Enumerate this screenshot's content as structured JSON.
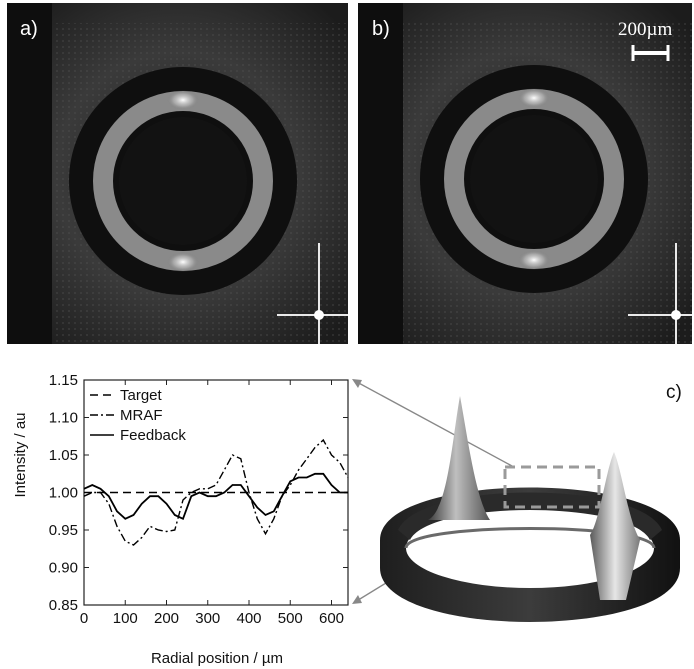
{
  "panels": {
    "a_label": "a)",
    "b_label": "b)",
    "c_label": "c)",
    "scalebar": "200µm"
  },
  "chart_data": {
    "type": "line",
    "xlabel": "Radial position / µm",
    "ylabel": "Intensity / au",
    "xlim": [
      0,
      640
    ],
    "ylim": [
      0.85,
      1.15
    ],
    "x_ticks": [
      0,
      100,
      200,
      300,
      400,
      500,
      600
    ],
    "y_ticks": [
      0.85,
      0.9,
      0.95,
      1.0,
      1.05,
      1.1,
      1.15
    ],
    "y_tick_labels": [
      "0.85",
      "0.90",
      "0.95",
      "1.00",
      "1.05",
      "1.10",
      "1.15"
    ],
    "legend_position": "top-left",
    "series": [
      {
        "name": "Target",
        "style": "dashed",
        "x": [
          0,
          640
        ],
        "y": [
          1.0,
          1.0
        ]
      },
      {
        "name": "MRAF",
        "style": "dashdot",
        "x": [
          0,
          20,
          40,
          60,
          80,
          100,
          120,
          140,
          160,
          180,
          200,
          220,
          240,
          260,
          280,
          300,
          320,
          340,
          360,
          380,
          400,
          420,
          440,
          460,
          480,
          500,
          520,
          540,
          560,
          580,
          600,
          620,
          640
        ],
        "y": [
          0.995,
          1.0,
          1.0,
          0.985,
          0.955,
          0.935,
          0.93,
          0.94,
          0.955,
          0.95,
          0.948,
          0.95,
          0.99,
          1.0,
          1.005,
          1.005,
          1.01,
          1.03,
          1.05,
          1.045,
          1.0,
          0.965,
          0.945,
          0.965,
          0.995,
          1.01,
          1.03,
          1.045,
          1.06,
          1.07,
          1.05,
          1.04,
          1.02
        ]
      },
      {
        "name": "Feedback",
        "style": "solid",
        "x": [
          0,
          20,
          40,
          60,
          80,
          100,
          120,
          140,
          160,
          180,
          200,
          220,
          240,
          260,
          280,
          300,
          320,
          340,
          360,
          380,
          400,
          420,
          440,
          460,
          480,
          500,
          520,
          540,
          560,
          580,
          600,
          620,
          640
        ],
        "y": [
          1.005,
          1.01,
          1.005,
          0.995,
          0.975,
          0.965,
          0.97,
          0.985,
          0.995,
          0.995,
          0.985,
          0.97,
          0.965,
          0.995,
          1.0,
          0.995,
          0.995,
          1.0,
          1.01,
          1.01,
          0.995,
          0.98,
          0.97,
          0.975,
          0.995,
          1.015,
          1.02,
          1.02,
          1.025,
          1.025,
          1.01,
          1.0,
          1.0
        ]
      }
    ]
  }
}
